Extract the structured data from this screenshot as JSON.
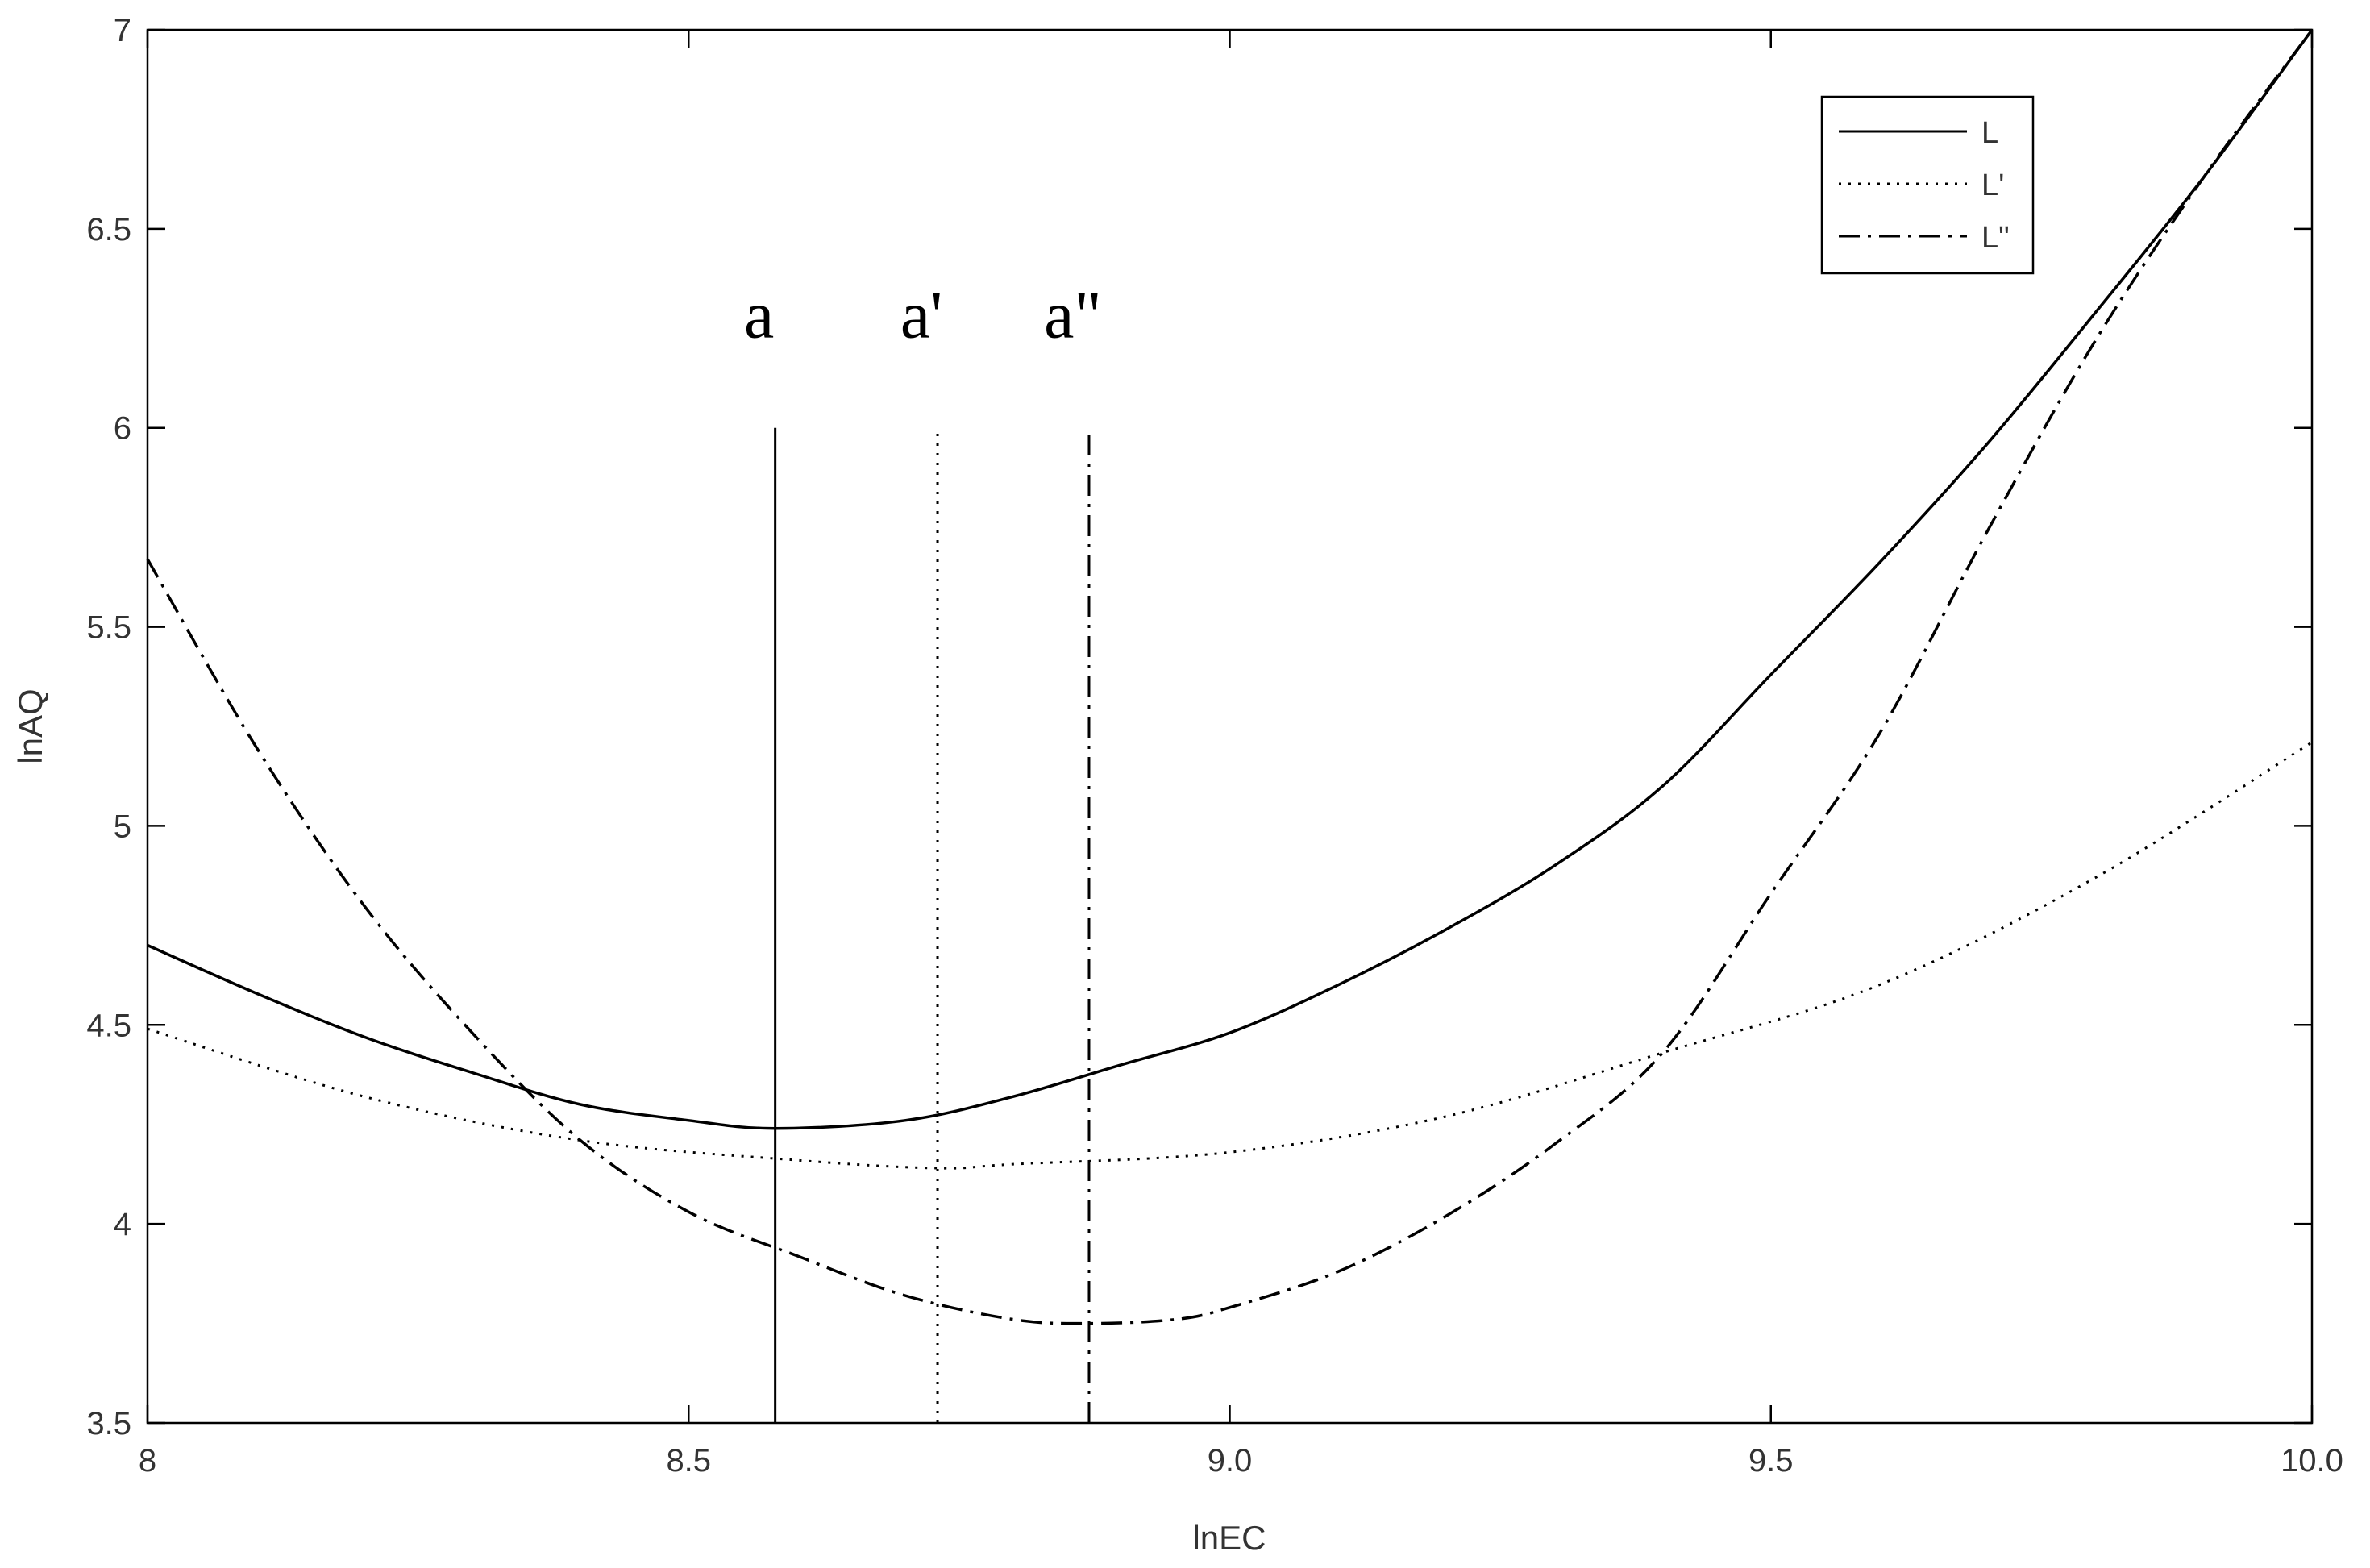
{
  "chart_data": {
    "type": "line",
    "title": "",
    "xlabel": "lnEC",
    "ylabel": "lnAQ",
    "xlim": [
      8,
      10
    ],
    "ylim": [
      3.5,
      7
    ],
    "xticks": [
      8,
      8.5,
      9.0,
      9.5,
      10.0
    ],
    "xtick_labels": [
      "8",
      "8.5",
      "9.0",
      "9.5",
      "10.0"
    ],
    "yticks": [
      3.5,
      4,
      4.5,
      5,
      5.5,
      6,
      6.5,
      7
    ],
    "ytick_labels": [
      "3.5",
      "4",
      "4.5",
      "5",
      "5.5",
      "6",
      "6.5",
      "7"
    ],
    "grid": false,
    "legend_position": "top-right",
    "series": [
      {
        "name": "L",
        "style": "solid",
        "x": [
          8.0,
          8.1,
          8.2,
          8.3,
          8.4,
          8.5,
          8.58,
          8.7,
          8.8,
          8.9,
          9.0,
          9.1,
          9.2,
          9.3,
          9.4,
          9.5,
          9.6,
          9.7,
          9.8,
          9.9,
          10.0
        ],
        "y": [
          4.7,
          4.58,
          4.47,
          4.38,
          4.3,
          4.26,
          4.24,
          4.26,
          4.32,
          4.4,
          4.48,
          4.6,
          4.74,
          4.9,
          5.1,
          5.38,
          5.66,
          5.96,
          6.29,
          6.63,
          7.0
        ]
      },
      {
        "name": "L'",
        "style": "dotted",
        "x": [
          8.0,
          8.2,
          8.4,
          8.6,
          8.73,
          8.8,
          9.0,
          9.2,
          9.4,
          9.6,
          9.8,
          10.0
        ],
        "y": [
          4.49,
          4.32,
          4.21,
          4.16,
          4.14,
          4.15,
          4.18,
          4.27,
          4.43,
          4.6,
          4.87,
          5.21
        ]
      },
      {
        "name": "L\"",
        "style": "dash-dot",
        "x": [
          8.0,
          8.1,
          8.2,
          8.3,
          8.4,
          8.5,
          8.6,
          8.7,
          8.8,
          8.87,
          8.95,
          9.0,
          9.1,
          9.2,
          9.3,
          9.4,
          9.5,
          9.6,
          9.7,
          9.8,
          9.9,
          10.0
        ],
        "y": [
          5.67,
          5.2,
          4.8,
          4.48,
          4.21,
          4.03,
          3.92,
          3.82,
          3.76,
          3.75,
          3.76,
          3.79,
          3.88,
          4.02,
          4.2,
          4.43,
          4.83,
          5.23,
          5.74,
          6.22,
          6.63,
          7.0
        ]
      }
    ],
    "reference_lines": [
      {
        "label": "a",
        "style": "solid",
        "x": 8.58,
        "y_from": 3.5,
        "y_to": 6
      },
      {
        "label": "a'",
        "style": "dotted",
        "x": 8.73,
        "y_from": 3.5,
        "y_to": 6
      },
      {
        "label": "a\"",
        "style": "dash-dot",
        "x": 8.87,
        "y_from": 3.5,
        "y_to": 6
      }
    ]
  }
}
